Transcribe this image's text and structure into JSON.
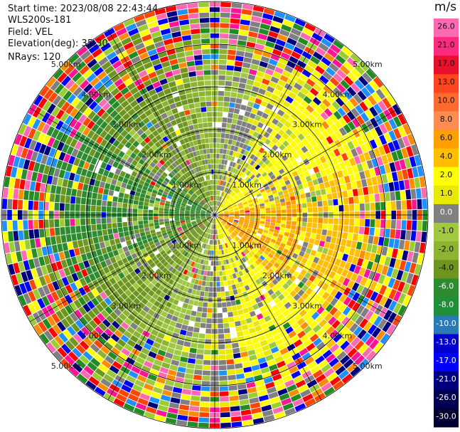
{
  "header": {
    "start_time": "Start time: 2023/08/08 22:43:44",
    "instrument": "WLS200s-181",
    "field": "Field: VEL",
    "elevation": "Elevation(deg): 35.30",
    "nrays": "NRays: 120"
  },
  "chart_data": {
    "type": "polar_ppi",
    "field": "VEL",
    "unit": "m/s",
    "elevation_deg": 35.3,
    "n_rays": 120,
    "range_rings_km": [
      1.0,
      2.0,
      3.0,
      4.0,
      5.0
    ],
    "range_labels": [
      "1.00km",
      "2.00km",
      "3.00km",
      "4.00km",
      "5.00km"
    ],
    "max_range_km": 5.0,
    "colorbar": {
      "ticks": [
        26.0,
        21.0,
        17.0,
        13.0,
        10.0,
        8.0,
        6.0,
        4.0,
        2.0,
        1.0,
        0.0,
        -1.0,
        -2.0,
        -4.0,
        -6.0,
        -8.0,
        -10.0,
        -13.0,
        -17.0,
        -21.0,
        -26.0,
        -30.0
      ],
      "tick_labels": [
        "26.0",
        "21.0",
        "17.0",
        "13.0",
        "10.0",
        "8.0",
        "6.0",
        "4.0",
        "2.0",
        "1.0",
        "0.0",
        "-1.0",
        "-2.0",
        "-4.0",
        "-6.0",
        "-8.0",
        "-10.0",
        "-13.0",
        "-17.0",
        "-21.0",
        "-26.0",
        "-30.0"
      ],
      "colors": [
        "#ff69b4",
        "#ff2a7f",
        "#e8102a",
        "#ff4520",
        "#ff6a30",
        "#ff8c50",
        "#ff9f00",
        "#ffbf00",
        "#ffff00",
        "#e8e800",
        "#808080",
        "#a0c840",
        "#8cb432",
        "#6e961e",
        "#2f8b2f",
        "#1f8f3a",
        "#2a7ab8",
        "#0000cd",
        "#0000ff",
        "#00007f",
        "#000050",
        "#000030"
      ]
    },
    "velocity_pattern": "positive (away) toward east and south-east, negative (toward) toward west and south-west; noisy outer ranges"
  }
}
